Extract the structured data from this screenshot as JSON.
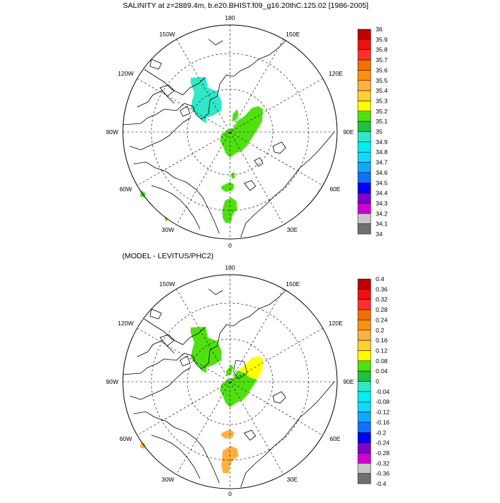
{
  "figure": {
    "title_top": "SALINITY at z=2889.4m, b.e20.BHIST.f09_g16.20thC.125.02 [1986-2005]",
    "title_bottom": "(MODEL - LEVITUS/PHC2)"
  },
  "map": {
    "projection": "north polar stereographic",
    "lon_labels": {
      "lon_180": "180",
      "lon_150W": "150W",
      "lon_150E": "150E",
      "lon_120W": "120W",
      "lon_120E": "120E",
      "lon_90W": "90W",
      "lon_90E": "90E",
      "lon_60W": "60W",
      "lon_60E": "60E",
      "lon_30W": "30W",
      "lon_30E": "30E",
      "lon_0": "0"
    }
  },
  "colorbar_top": {
    "labels": [
      "36",
      "35.9",
      "35.8",
      "35.7",
      "35.6",
      "35.5",
      "35.4",
      "35.3",
      "35.2",
      "35.1",
      "35",
      "34.9",
      "34.8",
      "34.7",
      "34.6",
      "34.5",
      "34.4",
      "34.3",
      "34.2",
      "34.1",
      "34"
    ],
    "colors": [
      "#c00000",
      "#f01010",
      "#ff3030",
      "#f07000",
      "#ff9010",
      "#ffb040",
      "#ffd030",
      "#ffff00",
      "#50e010",
      "#20c040",
      "#30e8c8",
      "#00f0f0",
      "#10d8ff",
      "#10a8ff",
      "#1070ff",
      "#0000ff",
      "#8000d0",
      "#d000d0",
      "#c8c8c8",
      "#707070"
    ]
  },
  "colorbar_bottom": {
    "labels": [
      "0.4",
      "0.36",
      "0.32",
      "0.28",
      "0.24",
      "0.2",
      "0.16",
      "0.12",
      "0.08",
      "0.04",
      "0",
      "-0.04",
      "-0.08",
      "-0.12",
      "-0.16",
      "-0.2",
      "-0.24",
      "-0.28",
      "-0.32",
      "-0.36",
      "-0.4"
    ],
    "colors": [
      "#c00000",
      "#f01010",
      "#ff3030",
      "#f07000",
      "#ff9010",
      "#ffb040",
      "#ffd030",
      "#ffff00",
      "#50e010",
      "#20c040",
      "#30e8c8",
      "#00f0f0",
      "#10d8ff",
      "#10a8ff",
      "#1070ff",
      "#0000ff",
      "#8000d0",
      "#d000d0",
      "#c8c8c8",
      "#707070"
    ]
  },
  "fields_top": {
    "region_canada_basin": "#30e8c8",
    "region_eurasian_basin": "#50e010",
    "region_north_atlantic": "#50e010"
  },
  "fields_bottom": {
    "region_canada_basin": "#50e010",
    "region_eurasian_basin": "#ffff00",
    "region_north_atlantic": "#ffb040"
  }
}
